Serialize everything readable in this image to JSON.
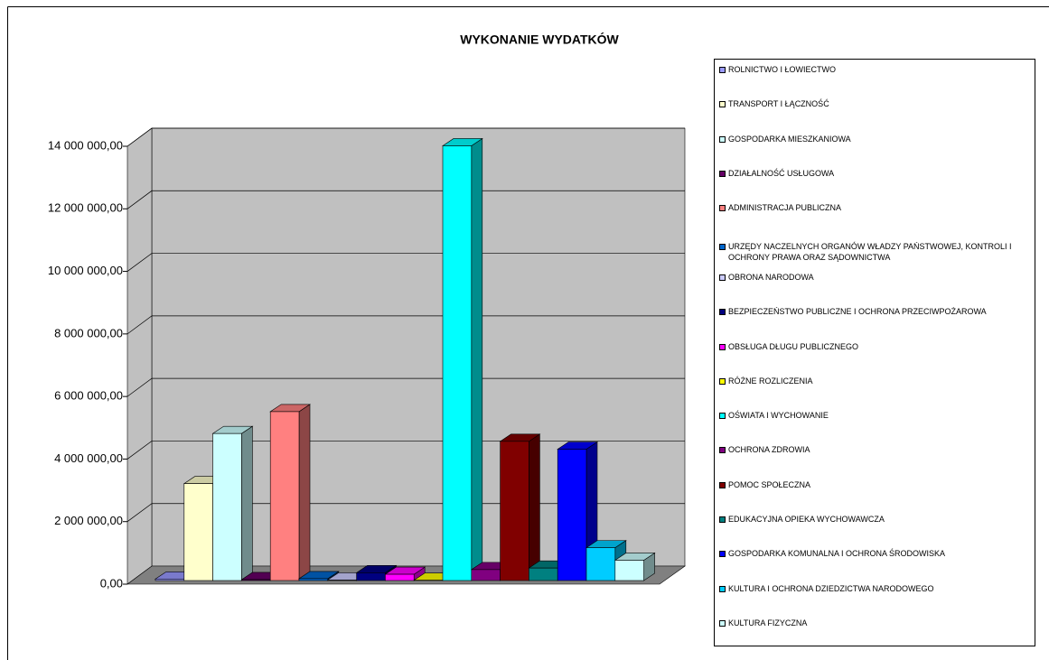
{
  "chart_data": {
    "type": "bar3d",
    "title": "WYKONANIE WYDATKÓW",
    "ylim": [
      0,
      14000000
    ],
    "yticks": [
      {
        "value": 0,
        "label": "0,00"
      },
      {
        "value": 2000000,
        "label": "2 000 000,00"
      },
      {
        "value": 4000000,
        "label": "4 000 000,00"
      },
      {
        "value": 6000000,
        "label": "6 000 000,00"
      },
      {
        "value": 8000000,
        "label": "8 000 000,00"
      },
      {
        "value": 10000000,
        "label": "10 000 000,00"
      },
      {
        "value": 12000000,
        "label": "12 000 000,00"
      },
      {
        "value": 14000000,
        "label": "14 000 000,00"
      }
    ],
    "grid": true,
    "legend": "right",
    "series": [
      {
        "name": "ROLNICTWO I ŁOWIECTWO",
        "color": "#9999ff",
        "values": [
          50000
        ]
      },
      {
        "name": "TRANSPORT I ŁĄCZNOŚĆ",
        "color": "#ffffcc",
        "values": [
          3100000
        ]
      },
      {
        "name": "GOSPODARKA MIESZKANIOWA",
        "color": "#ccffff",
        "values": [
          4700000
        ]
      },
      {
        "name": "DZIAŁALNOŚĆ USŁUGOWA",
        "color": "#660066",
        "values": [
          30000
        ]
      },
      {
        "name": "ADMINISTRACJA PUBLICZNA",
        "color": "#ff8080",
        "values": [
          5400000
        ]
      },
      {
        "name": "URZĘDY NACZELNYCH ORGANÓW WŁADZY PAŃSTWOWEJ, KONTROLI I OCHRONY PRAWA ORAZ SĄDOWNICTWA",
        "color": "#0066cc",
        "values": [
          60000
        ]
      },
      {
        "name": "OBRONA NARODOWA",
        "color": "#ccccff",
        "values": [
          20000
        ]
      },
      {
        "name": "BEZPIECZEŃSTWO PUBLICZNE I OCHRONA PRZECIWPOŻAROWA",
        "color": "#000080",
        "values": [
          250000
        ]
      },
      {
        "name": "OBSŁUGA DŁUGU PUBLICZNEGO",
        "color": "#ff00ff",
        "values": [
          200000
        ]
      },
      {
        "name": "RÓŻNE ROZLICZENIA",
        "color": "#ffff00",
        "values": [
          10000
        ]
      },
      {
        "name": "OŚWIATA I WYCHOWANIE",
        "color": "#00ffff",
        "values": [
          13900000
        ]
      },
      {
        "name": "OCHRONA ZDROWIA",
        "color": "#800080",
        "values": [
          350000
        ]
      },
      {
        "name": "POMOC SPOŁECZNA",
        "color": "#800000",
        "values": [
          4450000
        ]
      },
      {
        "name": "EDUKACYJNA OPIEKA WYCHOWAWCZA",
        "color": "#008080",
        "values": [
          400000
        ]
      },
      {
        "name": "GOSPODARKA KOMUNALNA I OCHRONA ŚRODOWISKA",
        "color": "#0000ff",
        "values": [
          4200000
        ]
      },
      {
        "name": "KULTURA I OCHRONA DZIEDZICTWA NARODOWEGO",
        "color": "#00ccff",
        "values": [
          1050000
        ]
      },
      {
        "name": "KULTURA FIZYCZNA",
        "color": "#ccffff",
        "values": [
          650000
        ]
      }
    ]
  }
}
